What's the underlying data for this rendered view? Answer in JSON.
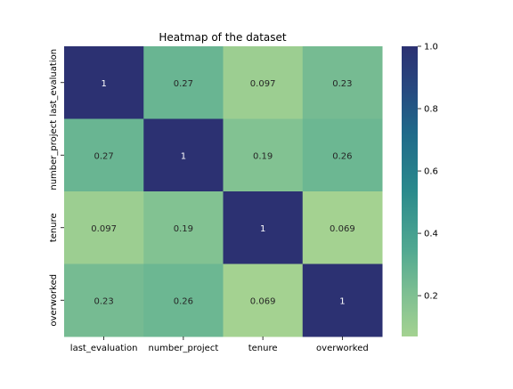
{
  "chart_data": {
    "type": "heatmap",
    "title": "Heatmap of the dataset",
    "xlabel": "",
    "ylabel": "",
    "rows": [
      "last_evaluation",
      "number_project",
      "tenure",
      "overworked"
    ],
    "columns": [
      "last_evaluation",
      "number_project",
      "tenure",
      "overworked"
    ],
    "values": [
      [
        1,
        0.27,
        0.097,
        0.23
      ],
      [
        0.27,
        1,
        0.19,
        0.26
      ],
      [
        0.097,
        0.19,
        1,
        0.069
      ],
      [
        0.23,
        0.26,
        0.069,
        1
      ]
    ],
    "colormap": "crest",
    "vmin": 0.069,
    "vmax": 1.0,
    "colorbar": {
      "ticks": [
        0.2,
        0.4,
        0.6,
        0.8,
        1.0
      ],
      "tick_labels": [
        "0.2",
        "0.4",
        "0.6",
        "0.8",
        "1.0"
      ]
    },
    "colors": {
      "low": "#a3d18f",
      "mid": "#2a8a8c",
      "high": "#2c3172",
      "dark_text": "#262626",
      "light_text": "#ffffff"
    }
  }
}
